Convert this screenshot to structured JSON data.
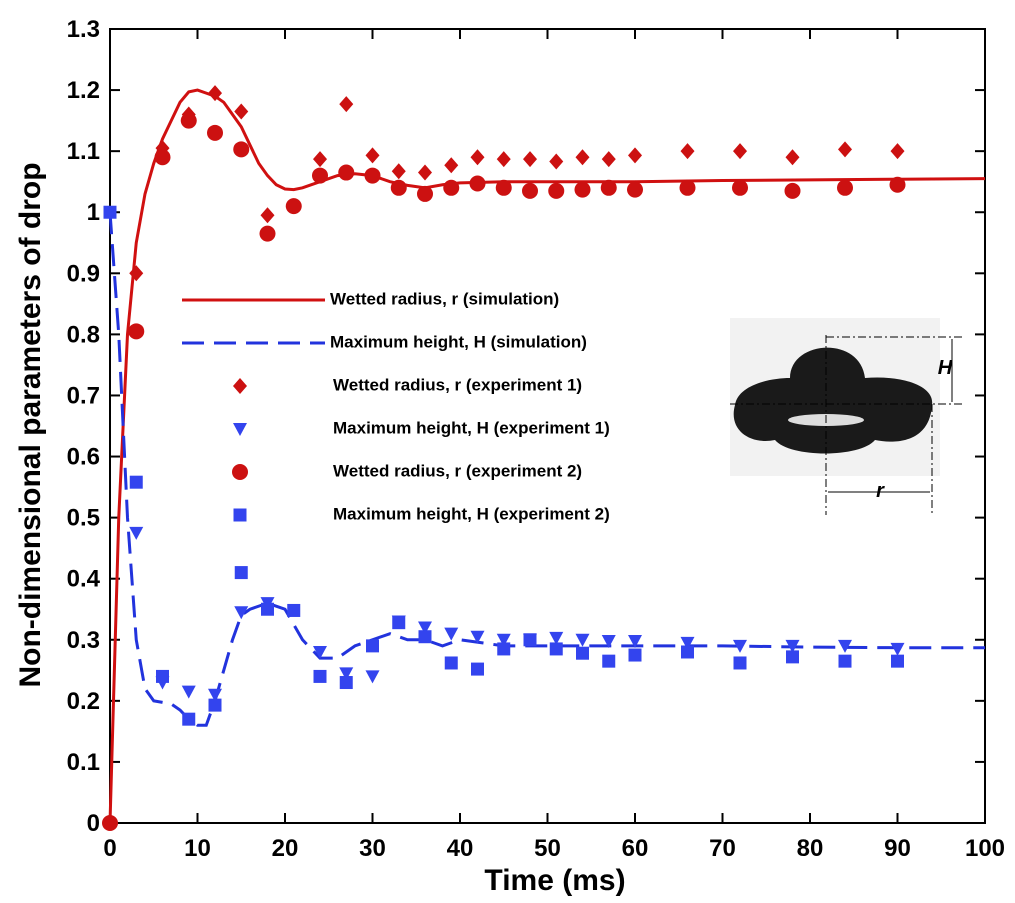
{
  "chart_data": {
    "type": "line",
    "x_label": "Time (ms)",
    "y_label": "Non-dimensional parameters of drop",
    "xlim": [
      0,
      100
    ],
    "xticks": [
      0,
      10,
      20,
      30,
      40,
      50,
      60,
      70,
      80,
      90,
      100
    ],
    "ylim": [
      0,
      1.3
    ],
    "yticks": [
      0,
      0.1,
      0.2,
      0.3,
      0.4,
      0.5,
      0.6,
      0.7,
      0.8,
      0.9,
      1,
      1.1,
      1.2,
      1.3
    ],
    "series": [
      {
        "name": "Wetted radius, r (simulation)",
        "color": "#d01010",
        "style": "solid",
        "marker": "none",
        "x": [
          0,
          1,
          2,
          3,
          4,
          5,
          6,
          7,
          8,
          9,
          10,
          11,
          12,
          13,
          14,
          15,
          16,
          17,
          18,
          19,
          20,
          21,
          22,
          24,
          26,
          28,
          30,
          32,
          34,
          36,
          38,
          40,
          45,
          50,
          60,
          70,
          80,
          90,
          100
        ],
        "values": [
          0,
          0.5,
          0.8,
          0.95,
          1.03,
          1.08,
          1.12,
          1.15,
          1.18,
          1.197,
          1.2,
          1.195,
          1.19,
          1.18,
          1.16,
          1.14,
          1.11,
          1.08,
          1.06,
          1.045,
          1.038,
          1.037,
          1.04,
          1.05,
          1.06,
          1.063,
          1.06,
          1.05,
          1.044,
          1.04,
          1.045,
          1.048,
          1.05,
          1.05,
          1.05,
          1.052,
          1.053,
          1.054,
          1.055
        ]
      },
      {
        "name": "Maximum height, H (simulation)",
        "color": "#2233dd",
        "style": "dashed",
        "marker": "none",
        "x": [
          0,
          1,
          2,
          3,
          4,
          5,
          7,
          8,
          9,
          10,
          11,
          12,
          13,
          14,
          15,
          16,
          18,
          20,
          22,
          24,
          26,
          28,
          30,
          32,
          34,
          36,
          38,
          40,
          45,
          50,
          60,
          70,
          80,
          90,
          100
        ],
        "values": [
          1,
          0.8,
          0.5,
          0.3,
          0.22,
          0.2,
          0.195,
          0.185,
          0.17,
          0.16,
          0.16,
          0.2,
          0.25,
          0.3,
          0.34,
          0.35,
          0.36,
          0.35,
          0.3,
          0.27,
          0.27,
          0.29,
          0.3,
          0.31,
          0.3,
          0.3,
          0.29,
          0.3,
          0.29,
          0.29,
          0.29,
          0.29,
          0.288,
          0.287,
          0.287
        ]
      },
      {
        "name": "Wetted radius, r (experiment 1)",
        "color": "#cc1111",
        "style": "none",
        "marker": "diamond",
        "x": [
          3,
          6,
          9,
          12,
          15,
          18,
          21,
          24,
          27,
          30,
          33,
          36,
          39,
          42,
          45,
          48,
          51,
          54,
          57,
          60,
          66,
          72,
          78,
          84,
          90
        ],
        "values": [
          0.9,
          1.105,
          1.16,
          1.195,
          1.165,
          0.995,
          1.01,
          1.087,
          1.177,
          1.093,
          1.067,
          1.065,
          1.077,
          1.09,
          1.087,
          1.087,
          1.083,
          1.09,
          1.087,
          1.093,
          1.1,
          1.1,
          1.09,
          1.103,
          1.1
        ]
      },
      {
        "name": "Maximum height, H (experiment 1)",
        "color": "#3344ee",
        "style": "none",
        "marker": "triangle-down",
        "x": [
          3,
          6,
          9,
          12,
          15,
          18,
          24,
          27,
          30,
          33,
          36,
          39,
          42,
          45,
          48,
          51,
          54,
          57,
          60,
          66,
          72,
          78,
          84,
          90
        ],
        "values": [
          0.475,
          0.23,
          0.215,
          0.21,
          0.345,
          0.36,
          0.28,
          0.245,
          0.24,
          0.33,
          0.32,
          0.31,
          0.305,
          0.3,
          0.3,
          0.303,
          0.3,
          0.298,
          0.298,
          0.295,
          0.29,
          0.29,
          0.29,
          0.285
        ]
      },
      {
        "name": "Wetted radius, r (experiment 2)",
        "color": "#cc1111",
        "style": "none",
        "marker": "circle",
        "x": [
          0,
          3,
          6,
          9,
          12,
          15,
          18,
          21,
          24,
          27,
          30,
          33,
          36,
          39,
          42,
          45,
          48,
          51,
          54,
          57,
          60,
          66,
          72,
          78,
          84,
          90
        ],
        "values": [
          0,
          0.805,
          1.09,
          1.15,
          1.13,
          1.103,
          0.965,
          1.01,
          1.06,
          1.065,
          1.06,
          1.04,
          1.03,
          1.04,
          1.047,
          1.04,
          1.035,
          1.035,
          1.037,
          1.04,
          1.037,
          1.04,
          1.04,
          1.035,
          1.04,
          1.045
        ]
      },
      {
        "name": "Maximum height, H (experiment 2)",
        "color": "#3344ee",
        "style": "none",
        "marker": "square",
        "x": [
          0,
          3,
          6,
          9,
          12,
          15,
          18,
          21,
          24,
          27,
          30,
          33,
          36,
          39,
          42,
          45,
          48,
          51,
          54,
          57,
          60,
          66,
          72,
          78,
          84,
          90
        ],
        "values": [
          1,
          0.558,
          0.24,
          0.17,
          0.193,
          0.41,
          0.35,
          0.348,
          0.24,
          0.23,
          0.29,
          0.328,
          0.305,
          0.262,
          0.252,
          0.285,
          0.3,
          0.285,
          0.278,
          0.265,
          0.275,
          0.28,
          0.262,
          0.272,
          0.265,
          0.265
        ]
      }
    ],
    "inset_labels": [
      "H",
      "r"
    ]
  }
}
